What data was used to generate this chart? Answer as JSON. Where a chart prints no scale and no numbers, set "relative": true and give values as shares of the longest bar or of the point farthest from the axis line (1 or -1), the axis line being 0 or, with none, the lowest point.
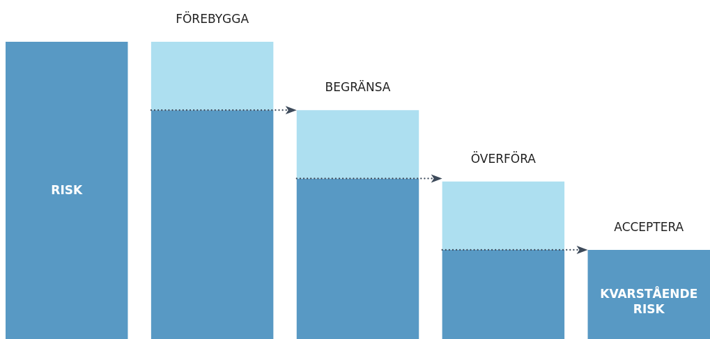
{
  "chart_data": {
    "type": "bar",
    "stacked": true,
    "relative": true,
    "categories": [
      null,
      "FÖREBYGGA",
      "BEGRÄNSA",
      "ÖVERFÖRA",
      "ACCEPTERA"
    ],
    "series": [
      {
        "color": "#5899c4",
        "values": [
          1,
          0.77,
          0.54,
          0.3,
          0.3
        ]
      },
      {
        "color": "#addff0",
        "values": [
          null,
          0.23,
          0.23,
          0.23,
          null
        ]
      }
    ],
    "annotations": [
      "RISK",
      "KVARSTÅENDE RISK"
    ]
  }
}
